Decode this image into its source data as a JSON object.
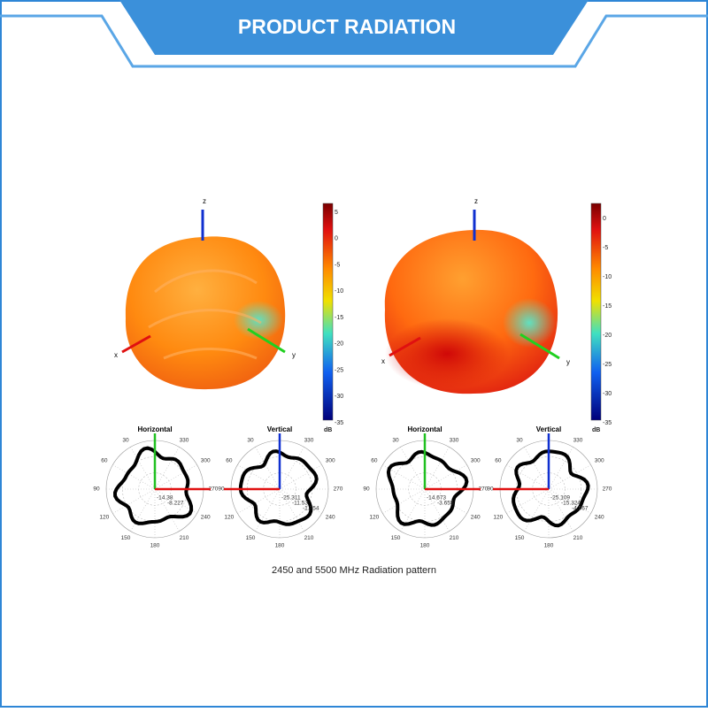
{
  "header": {
    "title": "PRODUCT RADIATION"
  },
  "patterns3d": [
    {
      "axes": {
        "x": "x",
        "y": "y",
        "z": "z"
      },
      "colorbar": {
        "ticks": [
          5,
          0,
          -5,
          -10,
          -15,
          -20,
          -25,
          -30,
          -35
        ],
        "unit": "dB"
      }
    },
    {
      "axes": {
        "x": "x",
        "y": "y",
        "z": "z"
      },
      "colorbar": {
        "ticks": [
          0,
          -5,
          -10,
          -15,
          -20,
          -25,
          -30,
          -35
        ],
        "unit": "dB"
      }
    }
  ],
  "polar_plots": [
    {
      "title": "Horizontal",
      "angles": [
        30,
        60,
        90,
        120,
        150,
        180,
        210,
        240,
        270,
        300,
        330
      ],
      "readouts": [
        "-14.38",
        "-8.227"
      ]
    },
    {
      "title": "Vertical",
      "angles": [
        30,
        60,
        90,
        120,
        150,
        180,
        210,
        240,
        270,
        300,
        330
      ],
      "readouts": [
        "-25.311",
        "-11.53",
        "-1.754"
      ]
    },
    {
      "title": "Horizontal",
      "angles": [
        30,
        60,
        90,
        120,
        150,
        180,
        210,
        240,
        270,
        300,
        330
      ],
      "readouts": [
        "-14.673",
        "-3.655"
      ]
    },
    {
      "title": "Vertical",
      "angles": [
        30,
        60,
        90,
        120,
        150,
        180,
        210,
        240,
        270,
        300,
        330
      ],
      "readouts": [
        "-25.109",
        "-15.324",
        "-4.567"
      ]
    }
  ],
  "caption": "2450 and 5500 MHz Radiation pattern"
}
